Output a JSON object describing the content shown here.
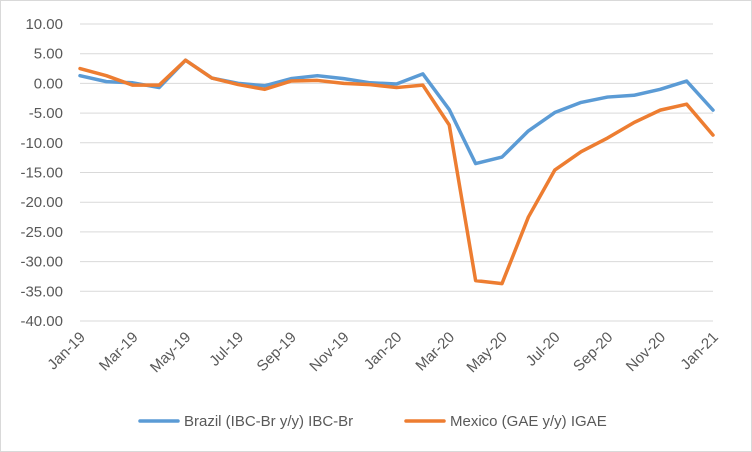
{
  "chart_data": {
    "type": "line",
    "title": "",
    "xlabel": "",
    "ylabel": "",
    "ylim": [
      -40,
      10
    ],
    "y_ticks": [
      "10.00",
      "5.00",
      "0.00",
      "-5.00",
      "-10.00",
      "-15.00",
      "-20.00",
      "-25.00",
      "-30.00",
      "-35.00",
      "-40.00"
    ],
    "x": [
      "Jan-19",
      "Feb-19",
      "Mar-19",
      "Apr-19",
      "May-19",
      "Jun-19",
      "Jul-19",
      "Aug-19",
      "Sep-19",
      "Oct-19",
      "Nov-19",
      "Dec-19",
      "Jan-20",
      "Feb-20",
      "Mar-20",
      "Apr-20",
      "May-20",
      "Jun-20",
      "Jul-20",
      "Aug-20",
      "Sep-20",
      "Oct-20",
      "Nov-20",
      "Dec-20",
      "Jan-21"
    ],
    "x_tick_labels": [
      "Jan-19",
      "",
      "Mar-19",
      "",
      "May-19",
      "",
      "Jul-19",
      "",
      "Sep-19",
      "",
      "Nov-19",
      "",
      "Jan-20",
      "",
      "Mar-20",
      "",
      "May-20",
      "",
      "Jul-20",
      "",
      "Sep-20",
      "",
      "Nov-20",
      "",
      "Jan-21"
    ],
    "grid": true,
    "legend": "bottom",
    "series": [
      {
        "name": "Brazil (IBC-Br y/y) IBC-Br",
        "color": "#5b9bd5",
        "values": [
          1.3,
          0.3,
          0.1,
          -0.7,
          3.9,
          0.9,
          0.0,
          -0.4,
          0.8,
          1.3,
          0.8,
          0.1,
          -0.1,
          1.6,
          -4.4,
          -13.5,
          -12.4,
          -8.0,
          -4.9,
          -3.2,
          -2.3,
          -2.0,
          -1.0,
          0.4,
          -4.5
        ]
      },
      {
        "name": "Mexico (GAE y/y) IGAE",
        "color": "#ed7d31",
        "values": [
          2.5,
          1.3,
          -0.3,
          -0.3,
          3.9,
          0.9,
          -0.2,
          -1.0,
          0.4,
          0.5,
          0.0,
          -0.2,
          -0.7,
          -0.3,
          -7.0,
          -33.2,
          -33.7,
          -22.5,
          -14.6,
          -11.5,
          -9.2,
          -6.6,
          -4.5,
          -3.5,
          -8.7
        ]
      }
    ]
  }
}
